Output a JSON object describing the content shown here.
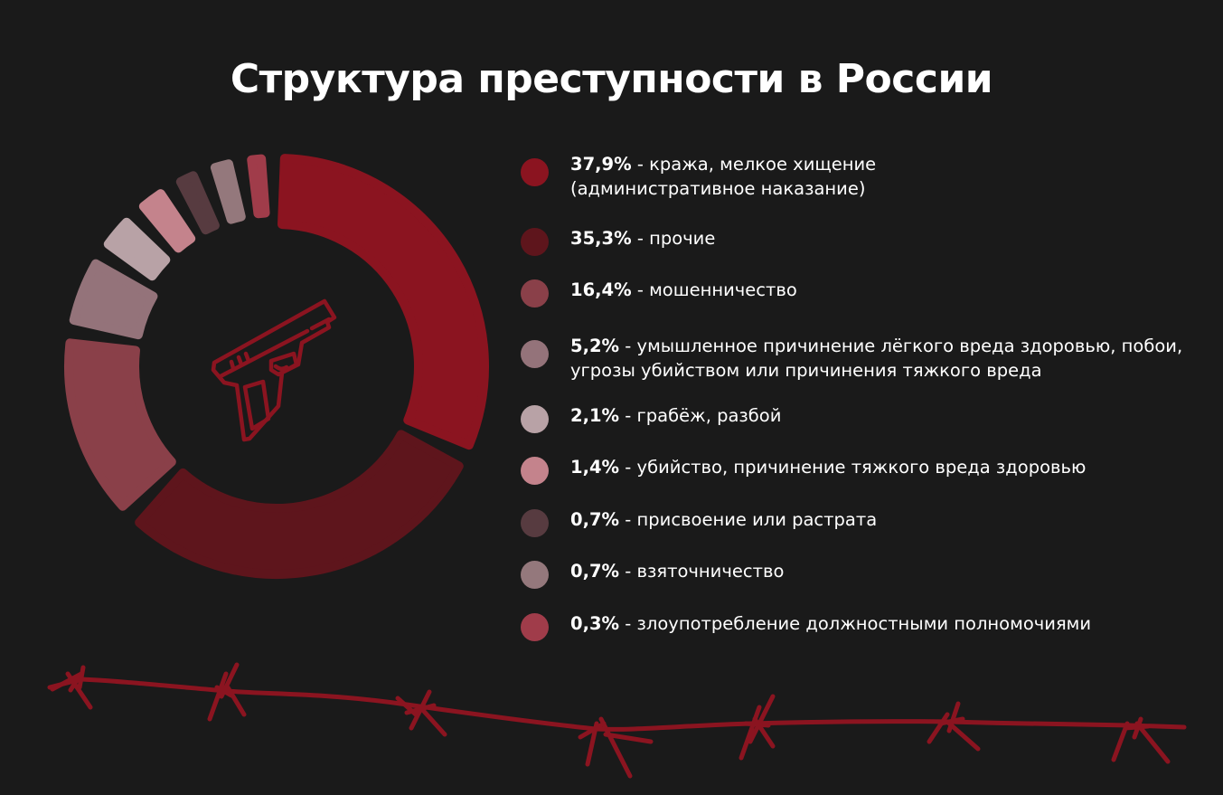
{
  "title": "Структура преступности в России",
  "chart_data": {
    "type": "pie",
    "title": "Структура преступности в России",
    "center_icon": "pistol-icon",
    "slices": [
      {
        "value": 37.9,
        "label_value": "37,9%",
        "label": "кража, мелкое хищение\n(административное наказание)",
        "color": "#8b1420"
      },
      {
        "value": 35.3,
        "label_value": "35,3%",
        "label": "прочие",
        "color": "#5e151c"
      },
      {
        "value": 16.4,
        "label_value": "16,4%",
        "label": "мошенничество",
        "color": "#8a4049"
      },
      {
        "value": 5.2,
        "label_value": "5,2%",
        "label": "умышленное причинение лёгкого вреда здоровью, побои,\nугрозы убийством или причинения тяжкого вреда",
        "color": "#94737a"
      },
      {
        "value": 2.1,
        "label_value": "2,1%",
        "label": "грабёж, разбой",
        "color": "#b8a2a6"
      },
      {
        "value": 1.4,
        "label_value": "1,4%",
        "label": "убийство, причинение тяжкого вреда здоровью",
        "color": "#c4838c"
      },
      {
        "value": 0.7,
        "label_value": "0,7%",
        "label": "присвоение или растрата",
        "color": "#573b40"
      },
      {
        "value": 0.7,
        "label_value": "0,7%",
        "label": "взяточничество",
        "color": "#94787c"
      },
      {
        "value": 0.3,
        "label_value": "0,3%",
        "label": "злоупотребление должностными полномочиями",
        "color": "#a03c4a"
      }
    ]
  },
  "colors": {
    "background": "#1a1a1a",
    "accent": "#8b1420"
  }
}
